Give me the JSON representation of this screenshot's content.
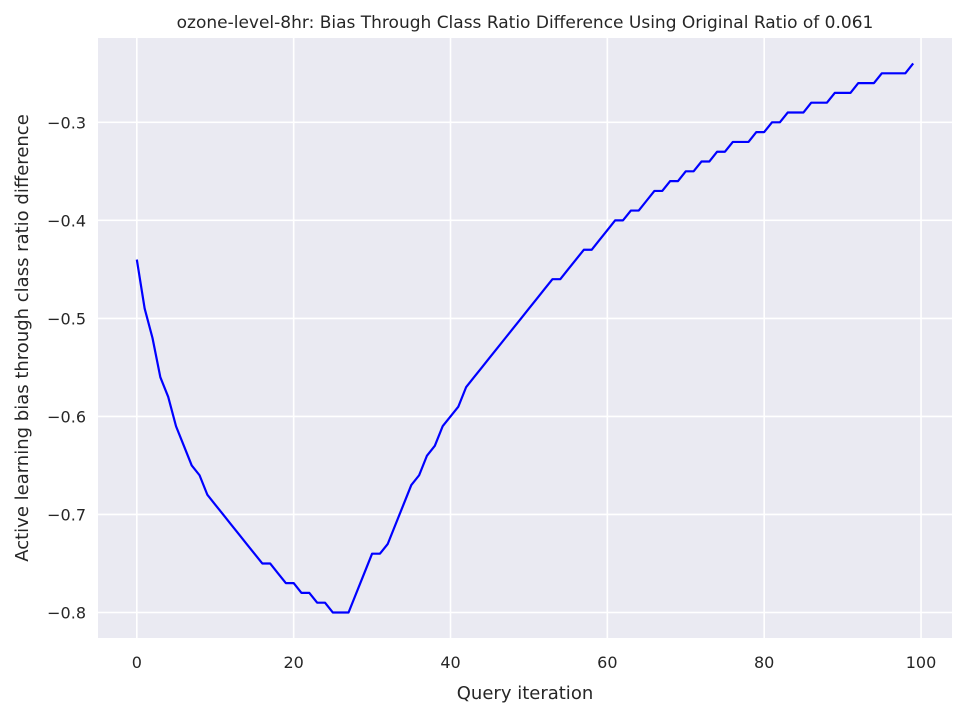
{
  "chart_data": {
    "type": "line",
    "title": "ozone-level-8hr: Bias Through Class Ratio Difference Using Original Ratio of 0.061",
    "xlabel": "Query iteration",
    "ylabel": "Active learning bias through class ratio difference",
    "xlim": [
      -4.95,
      103.95
    ],
    "ylim": [
      -0.826,
      -0.214
    ],
    "xticks": [
      0,
      20,
      40,
      60,
      80,
      100
    ],
    "yticks": [
      -0.8,
      -0.7,
      -0.6,
      -0.5,
      -0.4,
      -0.3
    ],
    "xtick_labels": [
      "0",
      "20",
      "40",
      "60",
      "80",
      "100"
    ],
    "ytick_labels": [
      "−0.8",
      "−0.7",
      "−0.6",
      "−0.5",
      "−0.4",
      "−0.3"
    ],
    "grid": true,
    "series": [
      {
        "name": "bias",
        "color": "#0000ff",
        "x": [
          0,
          1,
          2,
          3,
          4,
          5,
          6,
          7,
          8,
          9,
          10,
          11,
          12,
          13,
          14,
          15,
          16,
          17,
          18,
          19,
          20,
          21,
          22,
          23,
          24,
          25,
          26,
          27,
          28,
          29,
          30,
          31,
          32,
          33,
          34,
          35,
          36,
          37,
          38,
          39,
          40,
          41,
          42,
          43,
          44,
          45,
          46,
          47,
          48,
          49,
          50,
          51,
          52,
          53,
          54,
          55,
          56,
          57,
          58,
          59,
          60,
          61,
          62,
          63,
          64,
          65,
          66,
          67,
          68,
          69,
          70,
          71,
          72,
          73,
          74,
          75,
          76,
          77,
          78,
          79,
          80,
          81,
          82,
          83,
          84,
          85,
          86,
          87,
          88,
          89,
          90,
          91,
          92,
          93,
          94,
          95,
          96,
          97,
          98,
          99
        ],
        "values": [
          -0.44,
          -0.49,
          -0.52,
          -0.56,
          -0.58,
          -0.61,
          -0.63,
          -0.65,
          -0.66,
          -0.68,
          -0.69,
          -0.7,
          -0.71,
          -0.72,
          -0.73,
          -0.74,
          -0.75,
          -0.75,
          -0.76,
          -0.77,
          -0.77,
          -0.78,
          -0.78,
          -0.79,
          -0.79,
          -0.8,
          -0.8,
          -0.8,
          -0.78,
          -0.76,
          -0.74,
          -0.74,
          -0.73,
          -0.71,
          -0.69,
          -0.67,
          -0.66,
          -0.64,
          -0.63,
          -0.61,
          -0.6,
          -0.59,
          -0.57,
          -0.56,
          -0.55,
          -0.54,
          -0.53,
          -0.52,
          -0.51,
          -0.5,
          -0.49,
          -0.48,
          -0.47,
          -0.46,
          -0.46,
          -0.45,
          -0.44,
          -0.43,
          -0.43,
          -0.42,
          -0.41,
          -0.4,
          -0.4,
          -0.39,
          -0.39,
          -0.38,
          -0.37,
          -0.37,
          -0.36,
          -0.36,
          -0.35,
          -0.35,
          -0.34,
          -0.34,
          -0.33,
          -0.33,
          -0.32,
          -0.32,
          -0.32,
          -0.31,
          -0.31,
          -0.3,
          -0.3,
          -0.29,
          -0.29,
          -0.29,
          -0.28,
          -0.28,
          -0.28,
          -0.27,
          -0.27,
          -0.27,
          -0.26,
          -0.26,
          -0.26,
          -0.25,
          -0.25,
          -0.25,
          -0.25,
          -0.24
        ]
      }
    ],
    "colors": {
      "background": "#eaeaf2",
      "grid": "#ffffff",
      "text": "#262626"
    }
  }
}
